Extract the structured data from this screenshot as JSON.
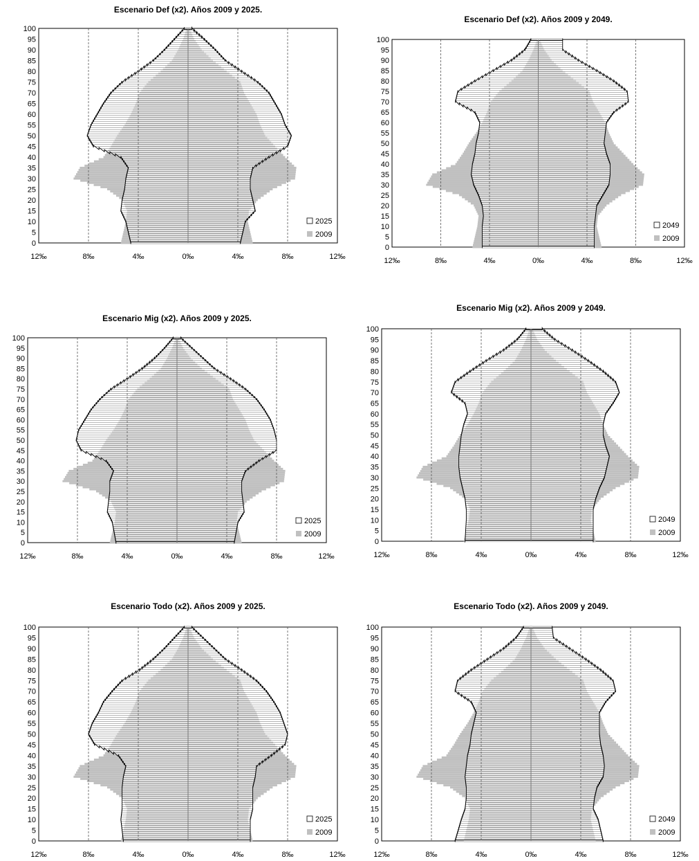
{
  "colors": {
    "base_fill": "#c0c0c0",
    "projection_fill": "#ffffff",
    "projection_hatch": "#555555",
    "outline": "#000000",
    "gridline": "#555555"
  },
  "chart_data": [
    {
      "type": "bar",
      "subtype": "population-pyramid",
      "title": "Escenario Def (x2). Años 2009 y 2025.",
      "xlim": [
        -12,
        12
      ],
      "x_ticks": [
        -12,
        -8,
        -4,
        0,
        4,
        8,
        12
      ],
      "x_tick_labels": [
        "12‰",
        "8‰",
        "4‰",
        "0‰",
        "4‰",
        "8‰",
        "12‰"
      ],
      "ylim": [
        0,
        100
      ],
      "y_ticks": [
        0,
        5,
        10,
        15,
        20,
        25,
        30,
        35,
        40,
        45,
        50,
        55,
        60,
        65,
        70,
        75,
        80,
        85,
        90,
        95,
        100
      ],
      "grid": "vertical dashed lines at 4‰ and 8‰",
      "legend_position": "bottom-right",
      "series": [
        {
          "name": "2025",
          "style": "hatched",
          "ages": [
            0,
            10,
            15,
            20,
            25,
            30,
            35,
            40,
            45,
            50,
            55,
            60,
            65,
            70,
            75,
            80,
            85,
            90,
            95,
            100
          ],
          "left": [
            -4.6,
            -5.0,
            -5.4,
            -5.3,
            -5.1,
            -5.0,
            -4.8,
            -5.4,
            -7.6,
            -8.1,
            -7.8,
            -7.3,
            -6.8,
            -6.2,
            -5.3,
            -4.0,
            -2.8,
            -1.9,
            -1.1,
            -0.3
          ],
          "right": [
            4.2,
            4.6,
            5.4,
            5.2,
            5.0,
            5.0,
            5.2,
            6.5,
            8.0,
            8.3,
            7.8,
            7.5,
            7.0,
            6.5,
            5.6,
            4.3,
            3.0,
            2.2,
            1.3,
            0.3
          ]
        },
        {
          "name": "2009",
          "style": "solid",
          "ages": [
            0,
            10,
            15,
            20,
            25,
            30,
            35,
            40,
            45,
            50,
            55,
            60,
            65,
            70,
            75,
            80,
            85,
            90,
            95,
            100
          ],
          "left": [
            -5.4,
            -5.0,
            -4.9,
            -5.3,
            -6.5,
            -9.2,
            -8.7,
            -6.8,
            -6.2,
            -5.7,
            -5.1,
            -4.6,
            -4.2,
            -3.9,
            -3.2,
            -2.2,
            -1.3,
            -0.8,
            -0.4,
            -0.1
          ],
          "right": [
            5.2,
            4.8,
            4.9,
            5.6,
            6.8,
            8.6,
            8.7,
            7.8,
            7.0,
            6.2,
            5.8,
            5.5,
            5.0,
            4.5,
            4.2,
            3.1,
            2.0,
            1.1,
            0.5,
            0.1
          ]
        }
      ]
    },
    {
      "type": "bar",
      "subtype": "population-pyramid",
      "title": "Escenario Def (x2). Años 2009 y 2049.",
      "xlim": [
        -12,
        12
      ],
      "x_ticks": [
        -12,
        -8,
        -4,
        0,
        4,
        8,
        12
      ],
      "x_tick_labels": [
        "12‰",
        "8‰",
        "4‰",
        "0‰",
        "4‰",
        "8‰",
        "12‰"
      ],
      "ylim": [
        0,
        100
      ],
      "y_ticks": [
        0,
        5,
        10,
        15,
        20,
        25,
        30,
        35,
        40,
        45,
        50,
        55,
        60,
        65,
        70,
        75,
        80,
        85,
        90,
        95,
        100
      ],
      "grid": "vertical dashed lines at 4‰ and 8‰",
      "legend_position": "bottom-right",
      "series": [
        {
          "name": "2049",
          "style": "hatched",
          "ages": [
            0,
            10,
            15,
            20,
            25,
            30,
            35,
            40,
            45,
            50,
            55,
            60,
            65,
            70,
            75,
            80,
            85,
            90,
            95,
            100
          ],
          "left": [
            -4.6,
            -4.6,
            -4.5,
            -4.6,
            -4.9,
            -5.3,
            -5.5,
            -5.4,
            -5.2,
            -5.1,
            -4.9,
            -4.8,
            -5.2,
            -6.8,
            -6.6,
            -5.2,
            -3.7,
            -2.2,
            -1.1,
            -0.6
          ],
          "right": [
            4.6,
            4.6,
            4.7,
            4.8,
            5.3,
            5.8,
            5.9,
            5.9,
            5.6,
            5.4,
            5.5,
            5.6,
            6.2,
            7.4,
            7.3,
            6.2,
            4.8,
            3.3,
            2.0,
            2.0
          ]
        },
        {
          "name": "2009",
          "style": "solid",
          "ages": [
            0,
            10,
            15,
            20,
            25,
            30,
            35,
            40,
            45,
            50,
            55,
            60,
            65,
            70,
            75,
            80,
            85,
            90,
            95,
            100
          ],
          "left": [
            -5.4,
            -5.0,
            -4.9,
            -5.3,
            -6.5,
            -9.2,
            -8.7,
            -6.8,
            -6.2,
            -5.7,
            -5.1,
            -4.6,
            -4.2,
            -3.9,
            -3.2,
            -2.2,
            -1.3,
            -0.8,
            -0.4,
            -0.1
          ],
          "right": [
            5.2,
            4.8,
            4.9,
            5.6,
            6.8,
            8.6,
            8.7,
            7.8,
            7.0,
            6.2,
            5.8,
            5.5,
            5.0,
            4.5,
            4.2,
            3.1,
            2.0,
            1.1,
            0.5,
            0.1
          ]
        }
      ]
    },
    {
      "type": "bar",
      "subtype": "population-pyramid",
      "title": "Escenario Mig (x2). Años 2009 y 2025.",
      "xlim": [
        -12,
        12
      ],
      "x_ticks": [
        -12,
        -8,
        -4,
        0,
        4,
        8,
        12
      ],
      "x_tick_labels": [
        "12‰",
        "8‰",
        "4‰",
        "0‰",
        "4‰",
        "8‰",
        "12‰"
      ],
      "ylim": [
        0,
        100
      ],
      "y_ticks": [
        0,
        5,
        10,
        15,
        20,
        25,
        30,
        35,
        40,
        45,
        50,
        55,
        60,
        65,
        70,
        75,
        80,
        85,
        90,
        95,
        100
      ],
      "grid": "vertical dashed lines at 4‰ and 8‰",
      "legend_position": "bottom-right",
      "series": [
        {
          "name": "2025",
          "style": "hatched",
          "ages": [
            0,
            10,
            15,
            20,
            25,
            30,
            35,
            40,
            45,
            50,
            55,
            60,
            65,
            70,
            75,
            80,
            85,
            90,
            95,
            100
          ],
          "left": [
            -4.9,
            -5.2,
            -5.6,
            -5.5,
            -5.4,
            -5.4,
            -5.1,
            -5.7,
            -7.7,
            -8.1,
            -7.9,
            -7.4,
            -6.9,
            -6.2,
            -5.3,
            -4.0,
            -2.8,
            -1.8,
            -1.0,
            -0.3
          ],
          "right": [
            4.6,
            4.9,
            5.4,
            5.3,
            5.2,
            5.2,
            5.5,
            6.6,
            8.0,
            8.0,
            7.8,
            7.5,
            7.0,
            6.4,
            5.5,
            4.3,
            3.0,
            2.1,
            1.2,
            0.3
          ]
        },
        {
          "name": "2009",
          "style": "solid",
          "ages": [
            0,
            10,
            15,
            20,
            25,
            30,
            35,
            40,
            45,
            50,
            55,
            60,
            65,
            70,
            75,
            80,
            85,
            90,
            95,
            100
          ],
          "left": [
            -5.4,
            -5.0,
            -4.9,
            -5.3,
            -6.5,
            -9.2,
            -8.7,
            -6.8,
            -6.2,
            -5.7,
            -5.1,
            -4.6,
            -4.2,
            -3.9,
            -3.2,
            -2.2,
            -1.3,
            -0.8,
            -0.4,
            -0.1
          ],
          "right": [
            5.2,
            4.8,
            4.9,
            5.6,
            6.8,
            8.6,
            8.7,
            7.8,
            7.0,
            6.2,
            5.8,
            5.5,
            5.0,
            4.5,
            4.2,
            3.1,
            2.0,
            1.1,
            0.5,
            0.1
          ]
        }
      ]
    },
    {
      "type": "bar",
      "subtype": "population-pyramid",
      "title": "Escenario Mig (x2). Años 2009 y 2049.",
      "xlim": [
        -12,
        12
      ],
      "x_ticks": [
        -12,
        -8,
        -4,
        0,
        4,
        8,
        12
      ],
      "x_tick_labels": [
        "12‰",
        "8‰",
        "4‰",
        "0‰",
        "4‰",
        "8‰",
        "12‰"
      ],
      "ylim": [
        0,
        100
      ],
      "y_ticks": [
        0,
        5,
        10,
        15,
        20,
        25,
        30,
        35,
        40,
        45,
        50,
        55,
        60,
        65,
        70,
        75,
        80,
        85,
        90,
        95,
        100
      ],
      "grid": "vertical dashed lines at 4‰ and 8‰",
      "legend_position": "bottom-right",
      "series": [
        {
          "name": "2049",
          "style": "hatched",
          "ages": [
            0,
            10,
            15,
            20,
            25,
            30,
            35,
            40,
            45,
            50,
            55,
            60,
            65,
            70,
            75,
            80,
            85,
            90,
            95,
            100
          ],
          "left": [
            -5.3,
            -5.2,
            -5.2,
            -5.3,
            -5.5,
            -5.7,
            -5.8,
            -5.8,
            -5.7,
            -5.6,
            -5.4,
            -5.1,
            -5.3,
            -6.4,
            -6.1,
            -4.9,
            -3.6,
            -2.2,
            -1.1,
            -0.4
          ],
          "right": [
            5.0,
            5.0,
            5.0,
            5.2,
            5.5,
            5.9,
            6.1,
            6.3,
            6.0,
            5.8,
            5.8,
            6.0,
            6.6,
            7.1,
            6.8,
            5.8,
            4.6,
            3.3,
            1.9,
            0.9
          ]
        },
        {
          "name": "2009",
          "style": "solid",
          "ages": [
            0,
            10,
            15,
            20,
            25,
            30,
            35,
            40,
            45,
            50,
            55,
            60,
            65,
            70,
            75,
            80,
            85,
            90,
            95,
            100
          ],
          "left": [
            -5.4,
            -5.0,
            -4.9,
            -5.3,
            -6.5,
            -9.2,
            -8.7,
            -6.8,
            -6.2,
            -5.7,
            -5.1,
            -4.6,
            -4.2,
            -3.9,
            -3.2,
            -2.2,
            -1.3,
            -0.8,
            -0.4,
            -0.1
          ],
          "right": [
            5.2,
            4.8,
            4.9,
            5.6,
            6.8,
            8.6,
            8.7,
            7.8,
            7.0,
            6.2,
            5.8,
            5.5,
            5.0,
            4.5,
            4.2,
            3.1,
            2.0,
            1.1,
            0.5,
            0.1
          ]
        }
      ]
    },
    {
      "type": "bar",
      "subtype": "population-pyramid",
      "title": "Escenario Todo (x2). Años 2009 y 2025.",
      "xlim": [
        -12,
        12
      ],
      "x_ticks": [
        -12,
        -8,
        -4,
        0,
        4,
        8,
        12
      ],
      "x_tick_labels": [
        "12‰",
        "8‰",
        "4‰",
        "0‰",
        "4‰",
        "8‰",
        "12‰"
      ],
      "ylim": [
        0,
        100
      ],
      "y_ticks": [
        0,
        5,
        10,
        15,
        20,
        25,
        30,
        35,
        40,
        45,
        50,
        55,
        60,
        65,
        70,
        75,
        80,
        85,
        90,
        95,
        100
      ],
      "grid": "vertical dashed lines at 4‰ and 8‰",
      "legend_position": "bottom-right",
      "series": [
        {
          "name": "2025",
          "style": "hatched",
          "ages": [
            0,
            10,
            15,
            20,
            25,
            30,
            35,
            40,
            45,
            50,
            55,
            60,
            65,
            70,
            75,
            80,
            85,
            90,
            95,
            100
          ],
          "left": [
            -5.2,
            -5.4,
            -5.3,
            -5.3,
            -5.3,
            -5.2,
            -5.0,
            -5.6,
            -7.5,
            -8.0,
            -7.7,
            -7.2,
            -6.8,
            -6.1,
            -5.3,
            -3.9,
            -2.8,
            -1.9,
            -1.1,
            -0.3
          ],
          "right": [
            5.0,
            5.0,
            5.2,
            5.2,
            5.2,
            5.4,
            5.5,
            6.7,
            7.8,
            8.0,
            7.7,
            7.4,
            6.9,
            6.3,
            5.5,
            4.3,
            3.0,
            2.1,
            1.2,
            0.3
          ]
        },
        {
          "name": "2009",
          "style": "solid",
          "ages": [
            0,
            10,
            15,
            20,
            25,
            30,
            35,
            40,
            45,
            50,
            55,
            60,
            65,
            70,
            75,
            80,
            85,
            90,
            95,
            100
          ],
          "left": [
            -5.4,
            -5.0,
            -4.9,
            -5.3,
            -6.5,
            -9.2,
            -8.7,
            -6.8,
            -6.2,
            -5.7,
            -5.1,
            -4.6,
            -4.2,
            -3.9,
            -3.2,
            -2.2,
            -1.3,
            -0.8,
            -0.4,
            -0.1
          ],
          "right": [
            5.2,
            4.8,
            4.9,
            5.6,
            6.8,
            8.6,
            8.7,
            7.8,
            7.0,
            6.2,
            5.8,
            5.5,
            5.0,
            4.5,
            4.2,
            3.1,
            2.0,
            1.1,
            0.5,
            0.1
          ]
        }
      ]
    },
    {
      "type": "bar",
      "subtype": "population-pyramid",
      "title": "Escenario Todo (x2). Años 2009 y 2049.",
      "xlim": [
        -12,
        12
      ],
      "x_ticks": [
        -12,
        -8,
        -4,
        0,
        4,
        8,
        12
      ],
      "x_tick_labels": [
        "12‰",
        "8‰",
        "4‰",
        "0‰",
        "4‰",
        "8‰",
        "12‰"
      ],
      "ylim": [
        0,
        100
      ],
      "y_ticks": [
        0,
        5,
        10,
        15,
        20,
        25,
        30,
        35,
        40,
        45,
        50,
        55,
        60,
        65,
        70,
        75,
        80,
        85,
        90,
        95,
        100
      ],
      "grid": "vertical dashed lines at 4‰ and 8‰",
      "legend_position": "bottom-right",
      "series": [
        {
          "name": "2049",
          "style": "hatched",
          "ages": [
            0,
            10,
            15,
            20,
            25,
            30,
            35,
            40,
            45,
            50,
            55,
            60,
            65,
            70,
            75,
            80,
            85,
            90,
            95,
            100
          ],
          "left": [
            -6.1,
            -5.6,
            -5.3,
            -5.2,
            -5.2,
            -5.3,
            -5.2,
            -5.1,
            -4.9,
            -4.8,
            -4.6,
            -4.4,
            -4.8,
            -6.1,
            -5.9,
            -4.8,
            -3.5,
            -2.2,
            -1.2,
            -0.6
          ],
          "right": [
            5.8,
            5.4,
            5.0,
            5.1,
            5.3,
            5.8,
            5.9,
            5.8,
            5.6,
            5.5,
            5.5,
            5.5,
            6.0,
            6.8,
            6.6,
            5.6,
            4.4,
            3.1,
            1.8,
            1.7
          ]
        },
        {
          "name": "2009",
          "style": "solid",
          "ages": [
            0,
            10,
            15,
            20,
            25,
            30,
            35,
            40,
            45,
            50,
            55,
            60,
            65,
            70,
            75,
            80,
            85,
            90,
            95,
            100
          ],
          "left": [
            -5.4,
            -5.0,
            -4.9,
            -5.3,
            -6.5,
            -9.2,
            -8.7,
            -6.8,
            -6.2,
            -5.7,
            -5.1,
            -4.6,
            -4.2,
            -3.9,
            -3.2,
            -2.2,
            -1.3,
            -0.8,
            -0.4,
            -0.1
          ],
          "right": [
            5.2,
            4.8,
            4.9,
            5.6,
            6.8,
            8.6,
            8.7,
            7.8,
            7.0,
            6.2,
            5.8,
            5.5,
            5.0,
            4.5,
            4.2,
            3.1,
            2.0,
            1.1,
            0.5,
            0.1
          ]
        }
      ]
    }
  ]
}
